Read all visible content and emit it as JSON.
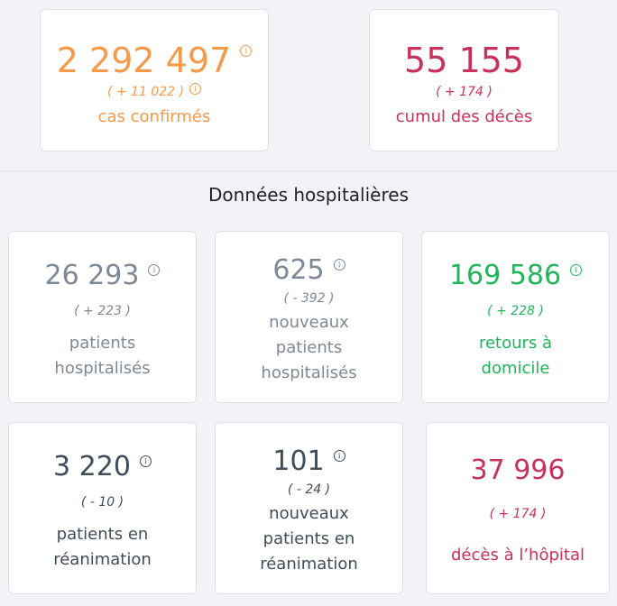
{
  "top": {
    "cases": {
      "value": "2 292 497",
      "delta": "( + 11 022 )",
      "label": "cas confirmés",
      "info": "i"
    },
    "deaths": {
      "value": "55 155",
      "delta": "( + 174 )",
      "label": "cumul des décès"
    }
  },
  "hospital": {
    "title": "Données hospitalières",
    "hospitalized": {
      "value": "26 293",
      "delta": "( + 223 )",
      "label": "patients\nhospitalisés",
      "info": "i"
    },
    "new_hospitalized": {
      "value": "625",
      "delta": "( - 392 )",
      "label": "nouveaux\npatients\nhospitalisés",
      "info": "i"
    },
    "returns_home": {
      "value": "169 586",
      "delta": "( + 228 )",
      "label": "retours à\ndomicile",
      "info": "i"
    },
    "icu": {
      "value": "3 220",
      "delta": "( - 10 )",
      "label": "patients en\nréanimation",
      "info": "i"
    },
    "new_icu": {
      "value": "101",
      "delta": "( - 24 )",
      "label": "nouveaux\npatients en\nréanimation",
      "info": "i"
    },
    "hospital_deaths": {
      "value": "37 996",
      "delta": "( + 174 )",
      "label": "décès à l’hôpital"
    }
  },
  "colors": {
    "orange": "#f5994a",
    "crimson": "#c8325a",
    "grey": "#7f8896",
    "green": "#21b55b",
    "navy": "#414c5a"
  }
}
